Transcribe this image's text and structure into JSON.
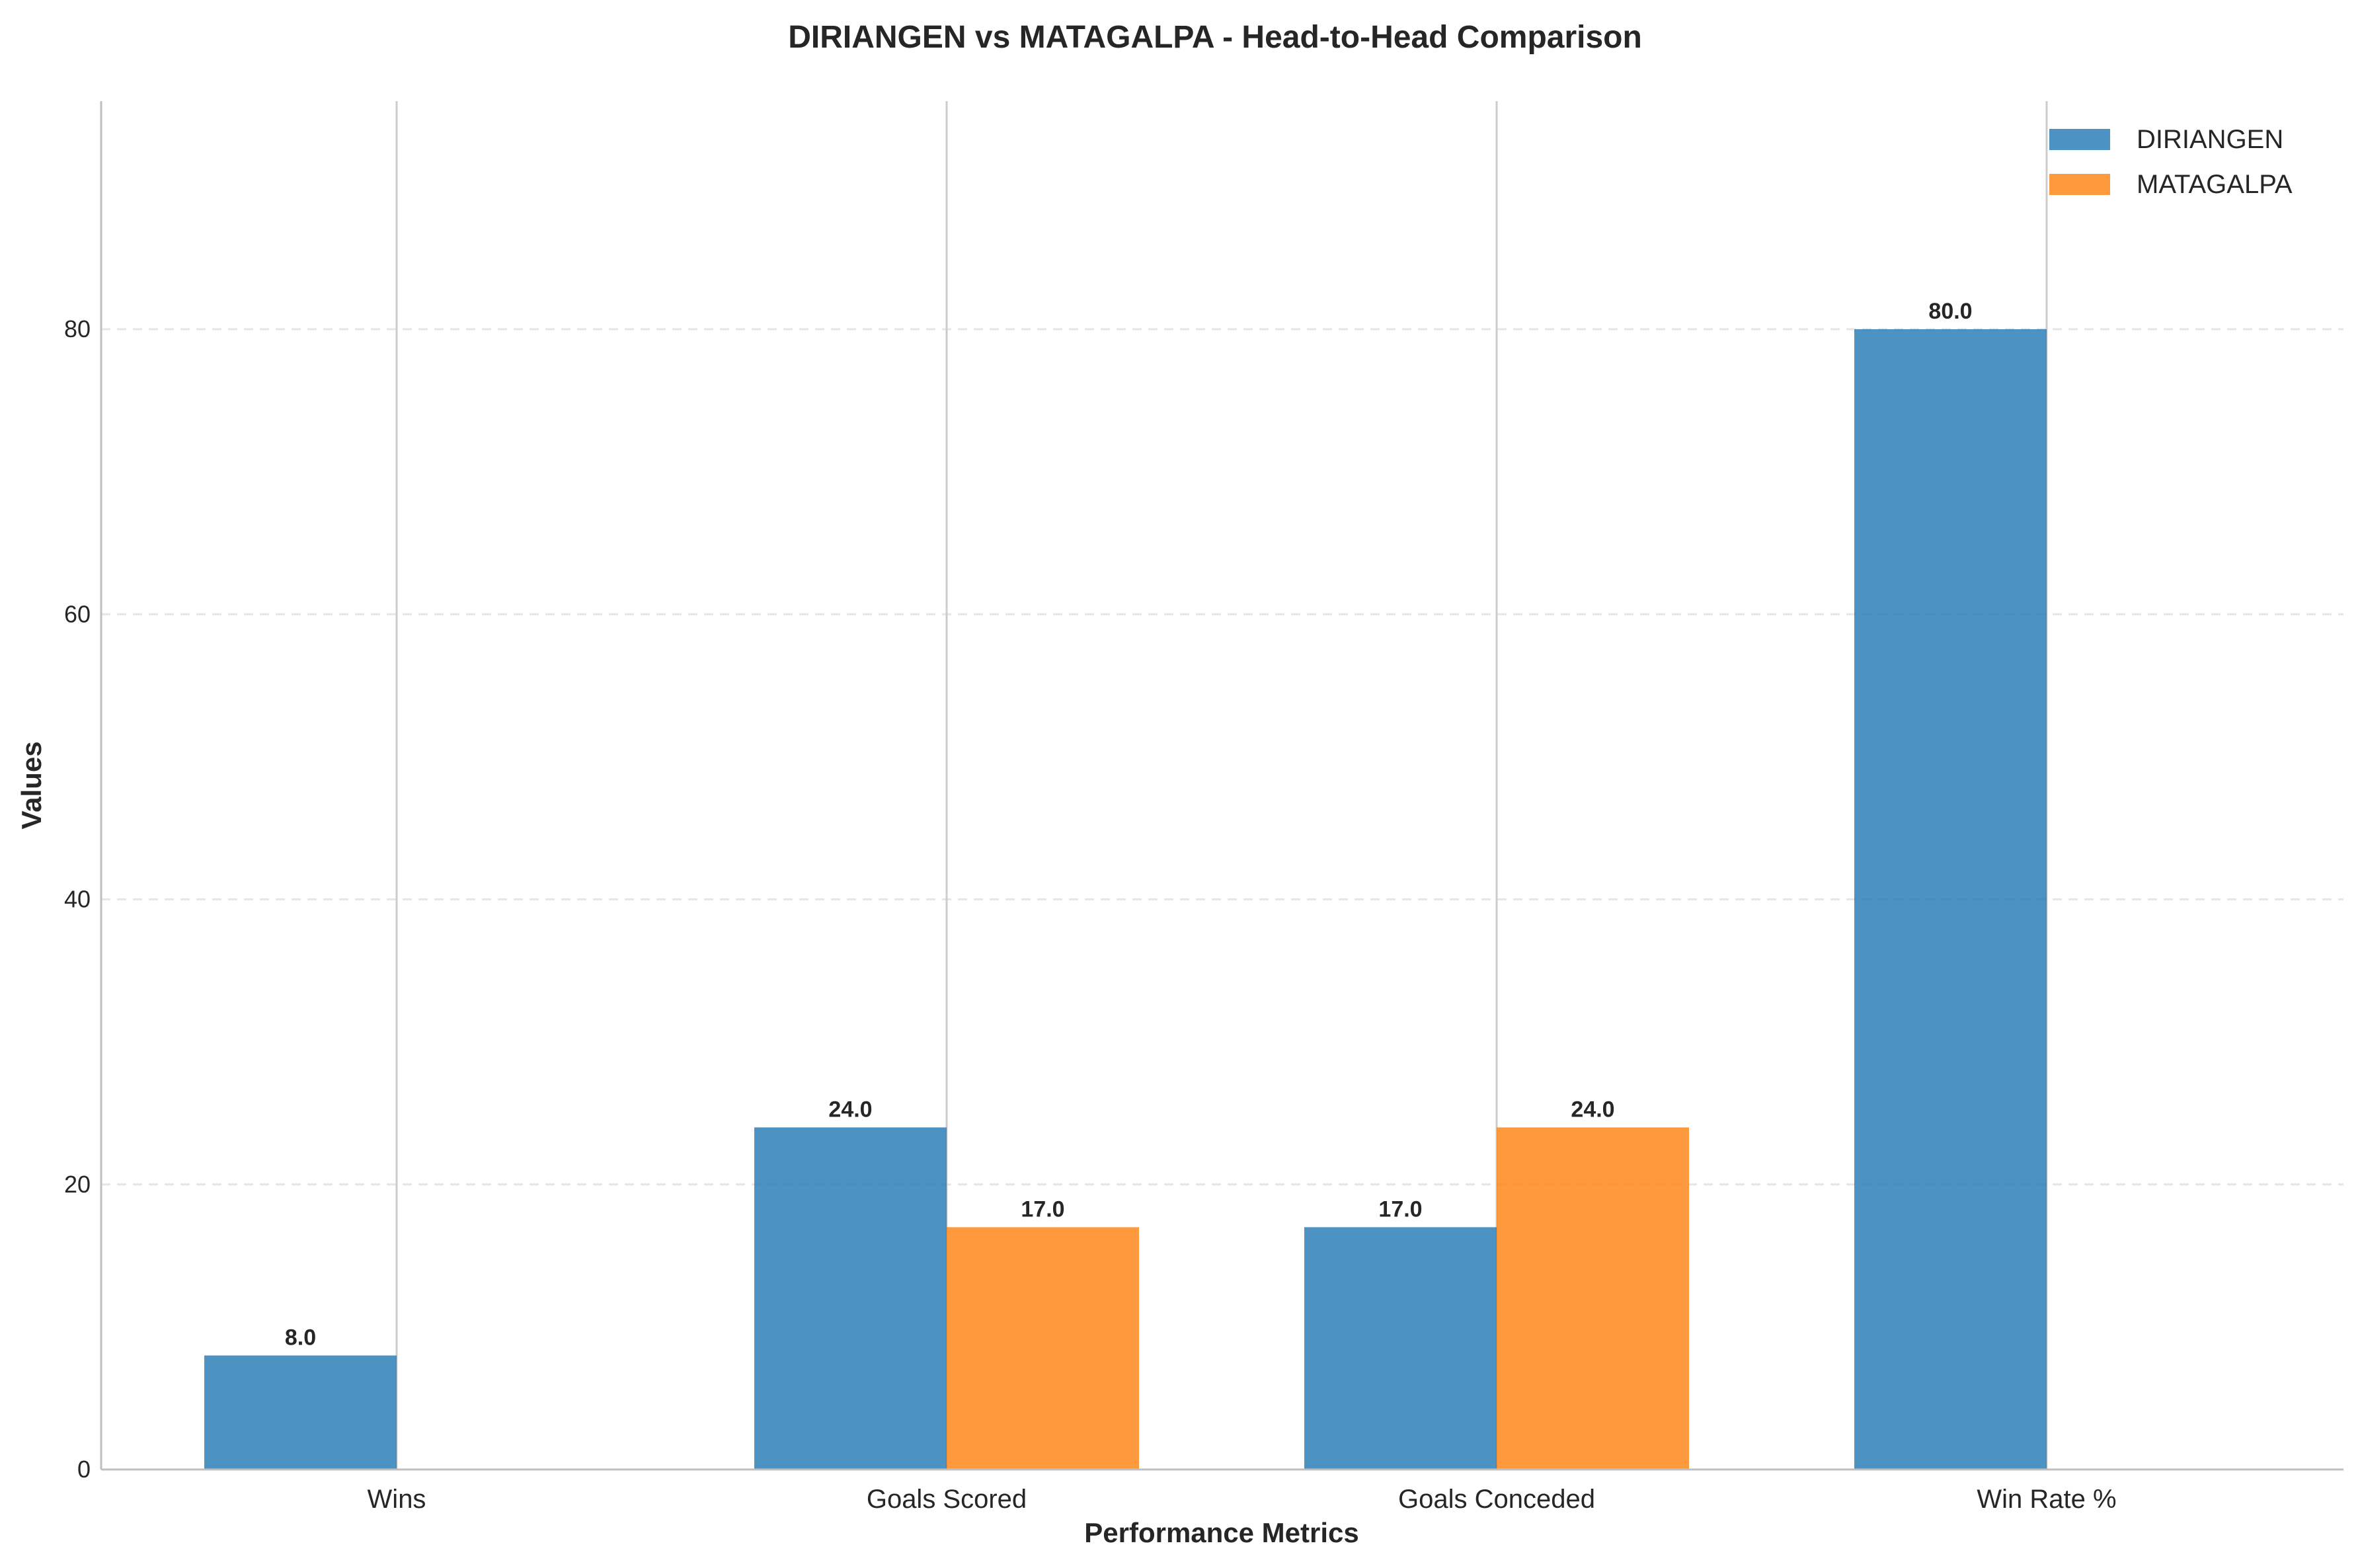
{
  "chart_data": {
    "type": "bar",
    "title": "DIRIANGEN vs MATAGALPA - Head-to-Head Comparison",
    "xlabel": "Performance Metrics",
    "ylabel": "Values",
    "categories": [
      "Wins",
      "Goals Scored",
      "Goals Conceded",
      "Win Rate %"
    ],
    "series": [
      {
        "name": "DIRIANGEN",
        "color": "#1f77b4",
        "values": [
          8.0,
          24.0,
          17.0,
          80.0
        ]
      },
      {
        "name": "MATAGALPA",
        "color": "#ff7f0e",
        "values": [
          0.0,
          17.0,
          24.0,
          0.0
        ]
      }
    ],
    "data_labels": [
      [
        "8.0",
        "24.0",
        "17.0",
        "80.0"
      ],
      [
        "",
        "17.0",
        "24.0",
        ""
      ]
    ],
    "yticks": [
      0,
      20,
      40,
      60,
      80
    ],
    "ytick_labels": [
      "0",
      "20",
      "40",
      "60",
      "80"
    ],
    "ylim": [
      0,
      96
    ],
    "grid": "y-dashed",
    "legend": "top-right"
  }
}
